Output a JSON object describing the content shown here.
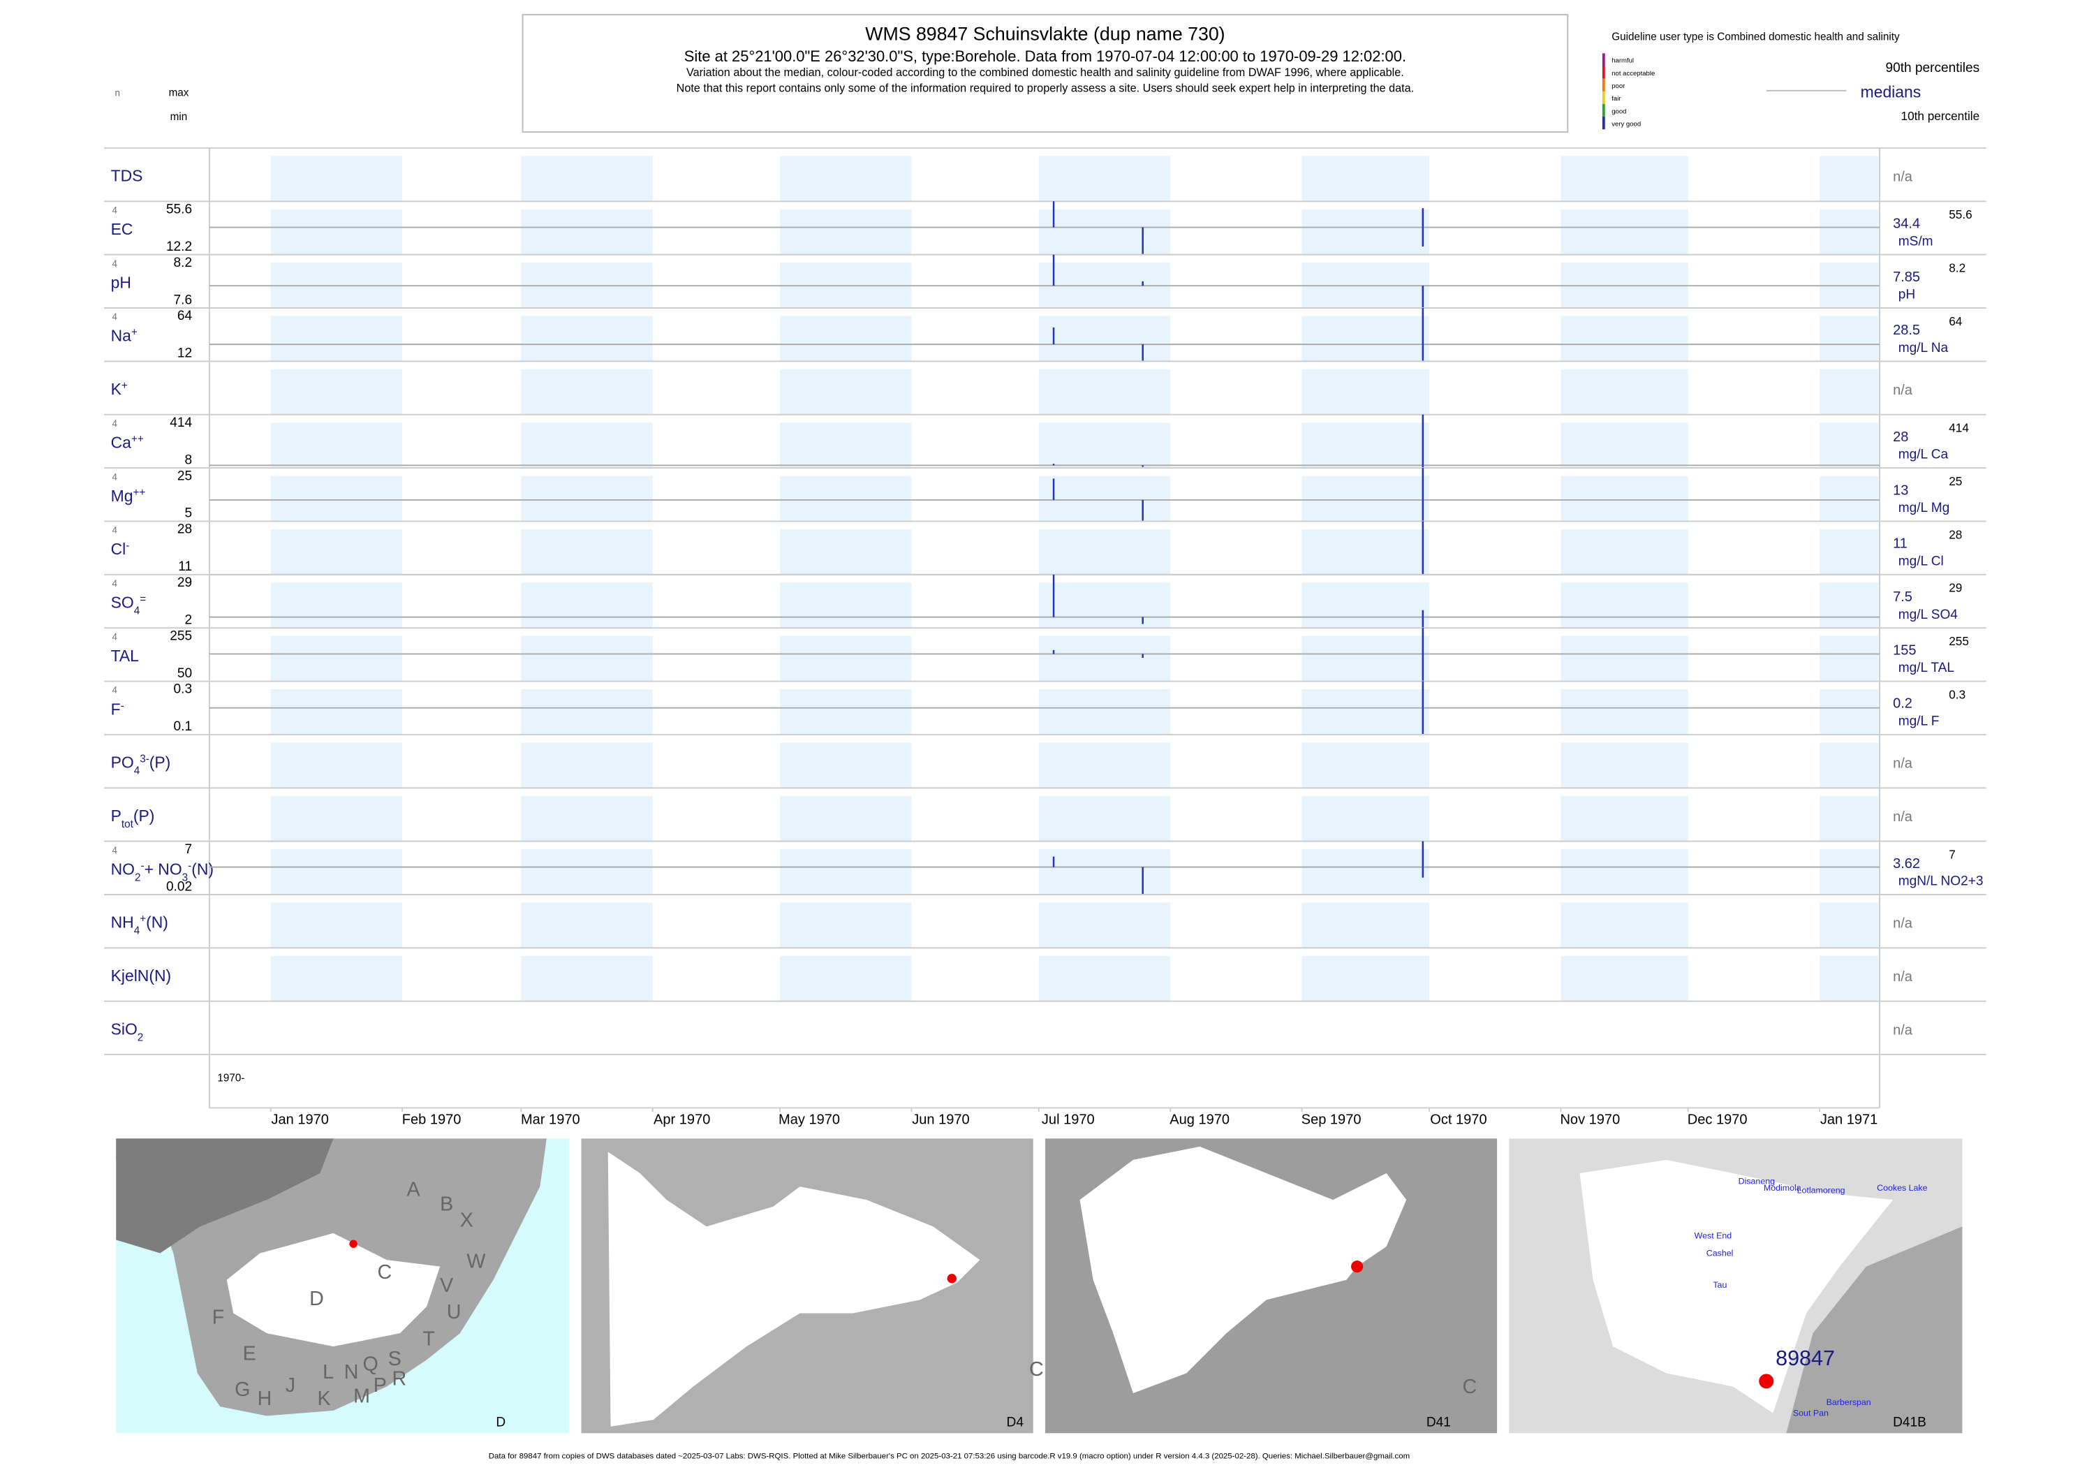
{
  "header": {
    "title": "WMS 89847  Schuinsvlakte (dup name 730)",
    "subtitle": "Site at 25°21'00.0\"E 26°32'30.0\"S, type:Borehole.  Data from 1970-07-04 12:00:00 to 1970-09-29 12:02:00.",
    "note1": "Variation about the median,  colour-coded according to the combined domestic health and salinity guideline from DWAF 1996, where applicable.",
    "note2": "Note that this report contains only some of the information required to properly assess a site. Users should seek expert help in interpreting the data.",
    "col_n": "n",
    "col_max": "max",
    "col_min": "min"
  },
  "legend": {
    "title": "Guideline user type is Combined domestic health and salinity",
    "classes": [
      {
        "name": "harmful",
        "color": "#9b1d8a"
      },
      {
        "name": "not acceptable",
        "color": "#e0102a"
      },
      {
        "name": "poor",
        "color": "#f07a10"
      },
      {
        "name": "fair",
        "color": "#e8d020"
      },
      {
        "name": "good",
        "color": "#30a030"
      },
      {
        "name": "very good",
        "color": "#2a2ab8"
      }
    ],
    "p90": "90th percentiles",
    "median": "medians",
    "p10": "10th percentile"
  },
  "chart_data": {
    "type": "strip",
    "x": [
      "1970-07-04T12:00:00",
      "1970-07-25T12:00:00",
      "1970-09-29T12:00:00",
      "1970-09-29T12:02:00"
    ],
    "xlim": [
      "1970-01-01",
      "1971-01-01"
    ],
    "xticks": [
      {
        "value": "1970-01-01",
        "label": "Jan 1970"
      },
      {
        "value": "1970-02-01",
        "label": "Feb 1970"
      },
      {
        "value": "1970-03-01",
        "label": "Mar 1970"
      },
      {
        "value": "1970-04-01",
        "label": "Apr 1970"
      },
      {
        "value": "1970-05-01",
        "label": "May 1970"
      },
      {
        "value": "1970-06-01",
        "label": "Jun 1970"
      },
      {
        "value": "1970-07-01",
        "label": "Jul 1970"
      },
      {
        "value": "1970-08-01",
        "label": "Aug 1970"
      },
      {
        "value": "1970-09-01",
        "label": "Sep 1970"
      },
      {
        "value": "1970-10-01",
        "label": "Oct 1970"
      },
      {
        "value": "1970-11-01",
        "label": "Nov 1970"
      },
      {
        "value": "1970-12-01",
        "label": "Dec 1970"
      },
      {
        "value": "1971-01-01",
        "label": "Jan 1971"
      }
    ],
    "period_label": "1970-",
    "color": "#2233bb",
    "rows": [
      {
        "label": [
          {
            "text": "TDS"
          }
        ],
        "na": "n/a"
      },
      {
        "label": [
          {
            "text": "EC"
          }
        ],
        "n": 4,
        "max": 55.6,
        "min": 12.2,
        "median": 34.4,
        "unit": "mS/m",
        "values": [
          55.6,
          12.2,
          50,
          18.8
        ]
      },
      {
        "label": [
          {
            "text": "pH"
          }
        ],
        "n": 4,
        "max": 8.2,
        "min": 7.6,
        "median": 7.85,
        "unit": "pH",
        "values": [
          8.2,
          7.9,
          7.6,
          7.8
        ]
      },
      {
        "label": [
          {
            "text": "Na"
          },
          {
            "sup": "+"
          }
        ],
        "n": 4,
        "max": 64,
        "min": 12,
        "median": 28.5,
        "unit": "mg/L Na",
        "values": [
          45,
          12,
          64,
          12
        ]
      },
      {
        "label": [
          {
            "text": "K"
          },
          {
            "sup": "+"
          }
        ],
        "na": "n/a"
      },
      {
        "label": [
          {
            "text": "Ca"
          },
          {
            "sup": "++"
          }
        ],
        "n": 4,
        "max": 414,
        "min": 8,
        "median": 28,
        "unit": "mg/L Ca",
        "values": [
          40,
          16,
          414,
          8
        ]
      },
      {
        "label": [
          {
            "text": "Mg"
          },
          {
            "sup": "++"
          }
        ],
        "n": 4,
        "max": 25,
        "min": 5,
        "median": 13,
        "unit": "mg/L Mg",
        "values": [
          21,
          5,
          25,
          5
        ]
      },
      {
        "label": [
          {
            "text": "Cl"
          },
          {
            "sup": "-"
          }
        ],
        "n": 4,
        "max": 28,
        "min": 11,
        "median": 11,
        "unit": "mg/L Cl",
        "values": [
          11,
          11,
          28,
          11
        ]
      },
      {
        "label": [
          {
            "text": "SO"
          },
          {
            "sub": "4"
          },
          {
            "sup": "="
          }
        ],
        "n": 4,
        "max": 29,
        "min": 2,
        "median": 7.5,
        "unit": "mg/L SO4",
        "values": [
          29,
          4,
          11,
          2
        ]
      },
      {
        "label": [
          {
            "text": "TAL"
          }
        ],
        "n": 4,
        "max": 255,
        "min": 50,
        "median": 155,
        "unit": "mg/L TAL",
        "values": [
          170,
          140,
          255,
          50
        ]
      },
      {
        "label": [
          {
            "text": "F"
          },
          {
            "sup": "-"
          }
        ],
        "n": 4,
        "max": 0.3,
        "min": 0.1,
        "median": 0.2,
        "unit": "mg/L F",
        "values": [
          0.2,
          0.2,
          0.3,
          0.1
        ]
      },
      {
        "label": [
          {
            "text": "PO"
          },
          {
            "sub": "4"
          },
          {
            "sup": "3-"
          },
          {
            "text": "(P)"
          }
        ],
        "na": "n/a"
      },
      {
        "label": [
          {
            "text": "P"
          },
          {
            "sub": "tot"
          },
          {
            "text": "(P)"
          }
        ],
        "na": "n/a"
      },
      {
        "label": [
          {
            "text": "NO"
          },
          {
            "sub": "2"
          },
          {
            "sup": "-"
          },
          {
            "text": "+ NO"
          },
          {
            "sub": "3"
          },
          {
            "sup": "-"
          },
          {
            "text": "(N)"
          }
        ],
        "n": 4,
        "max": 7,
        "min": 0.02,
        "median": 3.62,
        "unit": "mgN/L NO2+3",
        "values": [
          5,
          0.02,
          7,
          2.24
        ]
      },
      {
        "label": [
          {
            "text": "NH"
          },
          {
            "sub": "4"
          },
          {
            "sup": "+"
          },
          {
            "text": "(N)"
          }
        ],
        "na": "n/a"
      },
      {
        "label": [
          {
            "text": "KjelN(N)"
          }
        ],
        "na": "n/a"
      },
      {
        "label": [
          {
            "text": "SiO"
          },
          {
            "sub": "2"
          }
        ],
        "na": "n/a"
      }
    ]
  },
  "maps": [
    {
      "caption": "D",
      "labels": [
        "A",
        "B",
        "X",
        "W",
        "C",
        "V",
        "U",
        "T",
        "D",
        "F",
        "E",
        "G",
        "H",
        "J",
        "K",
        "L",
        "N",
        "Q",
        "M",
        "P",
        "S",
        "R"
      ]
    },
    {
      "caption": "D4",
      "labels": [
        "C"
      ]
    },
    {
      "caption": "D41",
      "labels": [
        "C"
      ]
    },
    {
      "caption": "D41B",
      "labels": [
        "Disaneng",
        "Modimola",
        "Lotlamoreng",
        "Cookes Lake",
        "West End",
        "Cashel",
        "Tau",
        "89847",
        "Barberspan",
        "Sout Pan"
      ]
    }
  ],
  "footer": "Data for 89847 from copies of DWS databases dated ~2025-03-07 Labs: DWS-RQIS. Plotted at Mike Silberbauer's PC on 2025-03-21 07:53:26 using barcode.R v19.9 (macro option) under R version 4.4.3 (2025-02-28). Queries: Michael.Silberbauer@gmail.com"
}
